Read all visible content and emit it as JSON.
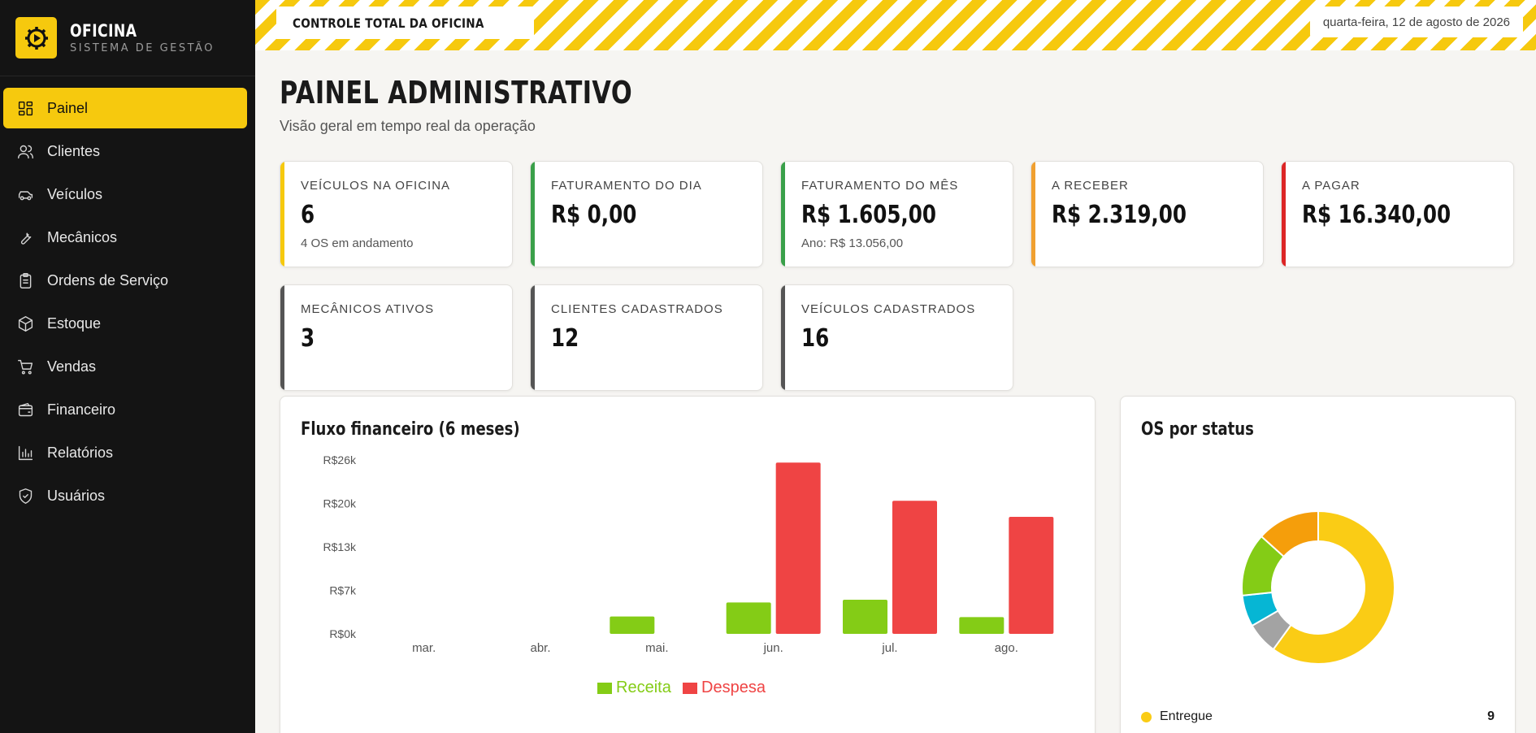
{
  "brand": {
    "name": "OFICINA",
    "subtitle": "SISTEMA DE GESTÃO"
  },
  "sidebar": {
    "items": [
      {
        "label": "Painel",
        "icon": "dashboard-icon",
        "active": true
      },
      {
        "label": "Clientes",
        "icon": "users-icon"
      },
      {
        "label": "Veículos",
        "icon": "car-icon"
      },
      {
        "label": "Mecânicos",
        "icon": "wrench-icon"
      },
      {
        "label": "Ordens de Serviço",
        "icon": "clipboard-icon"
      },
      {
        "label": "Estoque",
        "icon": "box-icon"
      },
      {
        "label": "Vendas",
        "icon": "cart-icon"
      },
      {
        "label": "Financeiro",
        "icon": "wallet-icon"
      },
      {
        "label": "Relatórios",
        "icon": "bar-chart-icon"
      },
      {
        "label": "Usuários",
        "icon": "shield-icon"
      }
    ]
  },
  "topbar": {
    "title": "CONTROLE TOTAL DA OFICINA",
    "date": "quarta-feira, 12 de agosto de 2026"
  },
  "page": {
    "title": "PAINEL ADMINISTRATIVO",
    "subtitle": "Visão geral em tempo real da operação"
  },
  "kpis": [
    {
      "label": "VEÍCULOS NA OFICINA",
      "value": "6",
      "sub": "4 OS em andamento",
      "color": "#f6c90e"
    },
    {
      "label": "FATURAMENTO DO DIA",
      "value": "R$ 0,00",
      "sub": "",
      "color": "#3aa04a"
    },
    {
      "label": "FATURAMENTO DO MÊS",
      "value": "R$ 1.605,00",
      "sub": "Ano: R$ 13.056,00",
      "color": "#3aa04a"
    },
    {
      "label": "A RECEBER",
      "value": "R$ 2.319,00",
      "sub": "",
      "color": "#f0a030"
    },
    {
      "label": "A PAGAR",
      "value": "R$ 16.340,00",
      "sub": "",
      "color": "#dc2626"
    },
    {
      "label": "MECÂNICOS ATIVOS",
      "value": "3",
      "sub": "",
      "color": "#555555"
    },
    {
      "label": "CLIENTES CADASTRADOS",
      "value": "12",
      "sub": "",
      "color": "#555555"
    },
    {
      "label": "VEÍCULOS CADASTRADOS",
      "value": "16",
      "sub": "",
      "color": "#555555"
    }
  ],
  "cashflow": {
    "title": "Fluxo financeiro (6 meses)",
    "chart_data": {
      "type": "bar",
      "categories": [
        "mar.",
        "abr.",
        "mai.",
        "jun.",
        "jul.",
        "ago."
      ],
      "series": [
        {
          "name": "Receita",
          "values": [
            0,
            0,
            2600,
            4700,
            5100,
            2500
          ],
          "color": "#84cc16"
        },
        {
          "name": "Despesa",
          "values": [
            0,
            0,
            0,
            25600,
            19900,
            17500
          ],
          "color": "#ef4444"
        }
      ],
      "y_ticks": [
        "R$0k",
        "R$7k",
        "R$13k",
        "R$20k",
        "R$26k"
      ],
      "y_tick_values": [
        0,
        6500,
        13000,
        19500,
        26000
      ],
      "ylim": [
        0,
        26000
      ],
      "legend_position": "bottom"
    }
  },
  "status": {
    "title": "OS por status",
    "chart_data": {
      "type": "pie",
      "slices": [
        {
          "name": "Entregue",
          "value": 9,
          "color": "#facc15"
        },
        {
          "name": "",
          "value": 1,
          "color": "#a3a3a3"
        },
        {
          "name": "",
          "value": 1,
          "color": "#06b6d4"
        },
        {
          "name": "",
          "value": 2,
          "color": "#84cc16"
        },
        {
          "name": "",
          "value": 2,
          "color": "#f59e0b"
        }
      ]
    },
    "legend": [
      {
        "name": "Entregue",
        "count": "9",
        "color": "#facc15"
      }
    ]
  }
}
